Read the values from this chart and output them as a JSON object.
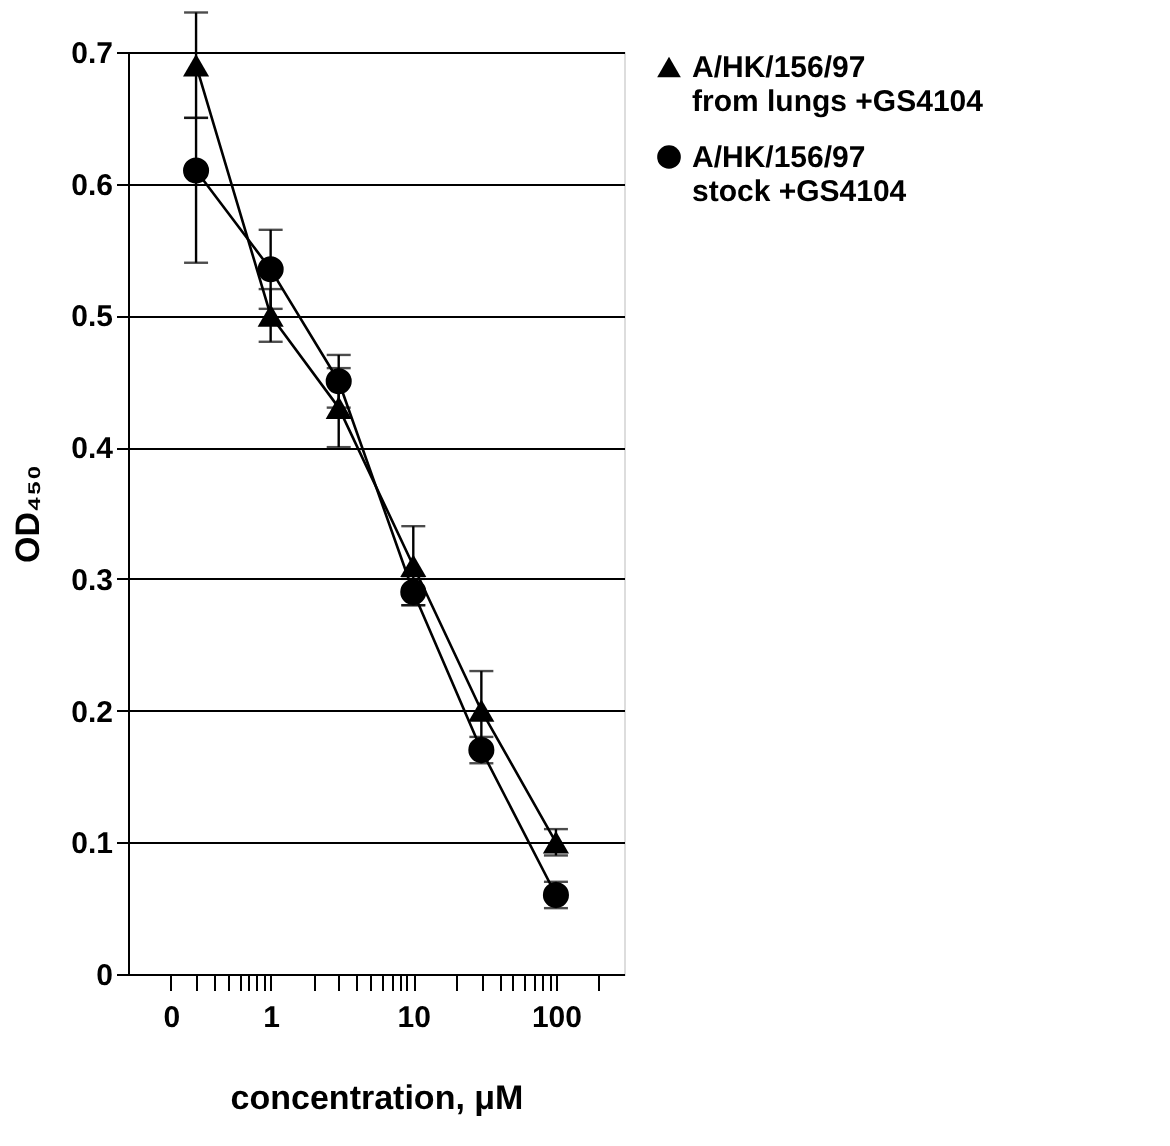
{
  "chart_data": {
    "type": "line",
    "xlabel": "concentration, μM",
    "ylabel": "OD₄₅₀",
    "log": "x",
    "xlim": [
      0.1,
      300
    ],
    "ylim": [
      0,
      0.7
    ],
    "xticks": [
      {
        "value": 0.2,
        "label": "0"
      },
      {
        "value": 0.3,
        "label": null
      },
      {
        "value": 0.4,
        "label": null
      },
      {
        "value": 0.5,
        "label": null
      },
      {
        "value": 0.6,
        "label": null
      },
      {
        "value": 0.7,
        "label": null
      },
      {
        "value": 0.8,
        "label": null
      },
      {
        "value": 0.9,
        "label": null
      },
      1,
      {
        "value": 2,
        "label": null
      },
      {
        "value": 3,
        "label": null
      },
      {
        "value": 4,
        "label": null
      },
      {
        "value": 5,
        "label": null
      },
      {
        "value": 6,
        "label": null
      },
      {
        "value": 7,
        "label": null
      },
      {
        "value": 8,
        "label": null
      },
      {
        "value": 9,
        "label": null
      },
      10,
      {
        "value": 20,
        "label": null
      },
      {
        "value": 30,
        "label": null
      },
      {
        "value": 40,
        "label": null
      },
      {
        "value": 50,
        "label": null
      },
      {
        "value": 60,
        "label": null
      },
      {
        "value": 70,
        "label": null
      },
      {
        "value": 80,
        "label": null
      },
      {
        "value": 90,
        "label": null
      },
      100,
      {
        "value": 200,
        "label": null
      }
    ],
    "yticks": [
      0,
      0.1,
      0.2,
      0.3,
      0.4,
      0.5,
      0.6,
      0.7
    ],
    "grid": "y",
    "legend": "top right",
    "line_style": "solid",
    "x": [
      0.3,
      1,
      3,
      10,
      30,
      100
    ],
    "series": [
      {
        "name": "A/HK/156/97\nfrom lungs +GS4104",
        "color": "#000000",
        "marker": "triangle",
        "values": [
          0.69,
          0.5,
          0.43,
          0.31,
          0.2,
          0.1
        ],
        "errors": [
          0.04,
          0.02,
          0.03,
          0.03,
          0.03,
          0.01
        ]
      },
      {
        "name": "A/HK/156/97\nstock +GS4104",
        "color": "#000000",
        "marker": "circle",
        "values": [
          0.61,
          0.535,
          0.45,
          0.29,
          0.17,
          0.06
        ],
        "errors": [
          [
            0.54,
            0.65
          ],
          0.03,
          0.02,
          0.01,
          0.01,
          0.01
        ]
      }
    ]
  }
}
